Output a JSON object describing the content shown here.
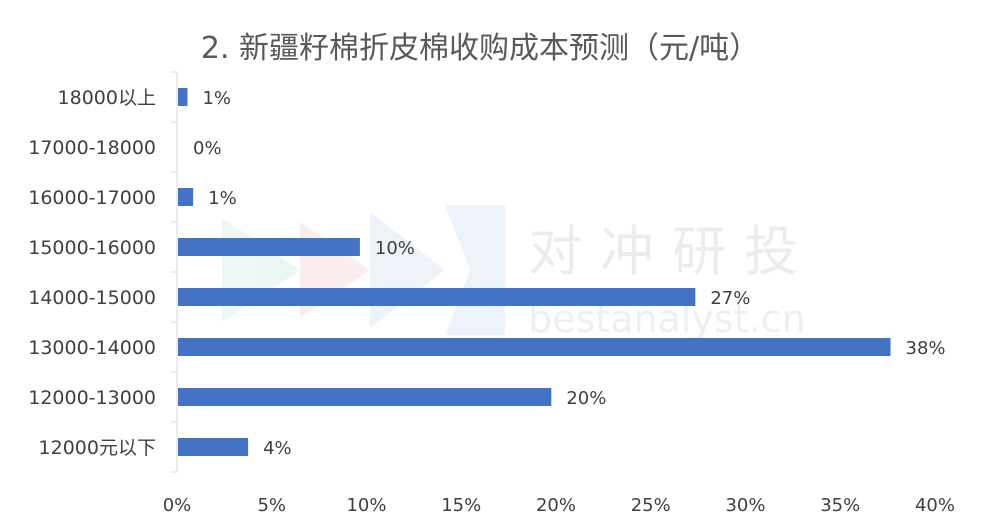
{
  "chart_data": {
    "type": "bar",
    "orientation": "horizontal",
    "title": "2. 新疆籽棉折皮棉收购成本预测（元/吨）",
    "categories": [
      "18000以上",
      "17000-18000",
      "16000-17000",
      "15000-16000",
      "14000-15000",
      "13000-14000",
      "12000-13000",
      "12000元以下"
    ],
    "values": [
      0.5,
      0,
      0.8,
      9.6,
      27.3,
      37.6,
      19.7,
      3.7
    ],
    "data_labels": [
      "1%",
      "0%",
      "1%",
      "10%",
      "27%",
      "38%",
      "20%",
      "4%"
    ],
    "x_ticks": [
      "0%",
      "5%",
      "10%",
      "15%",
      "20%",
      "25%",
      "30%",
      "35%",
      "40%"
    ],
    "xlim": [
      0,
      40
    ],
    "grid": false,
    "bar_color": "#4472C4"
  },
  "watermark": {
    "text": "对冲研投",
    "sub": "bestanalyst.cn"
  }
}
